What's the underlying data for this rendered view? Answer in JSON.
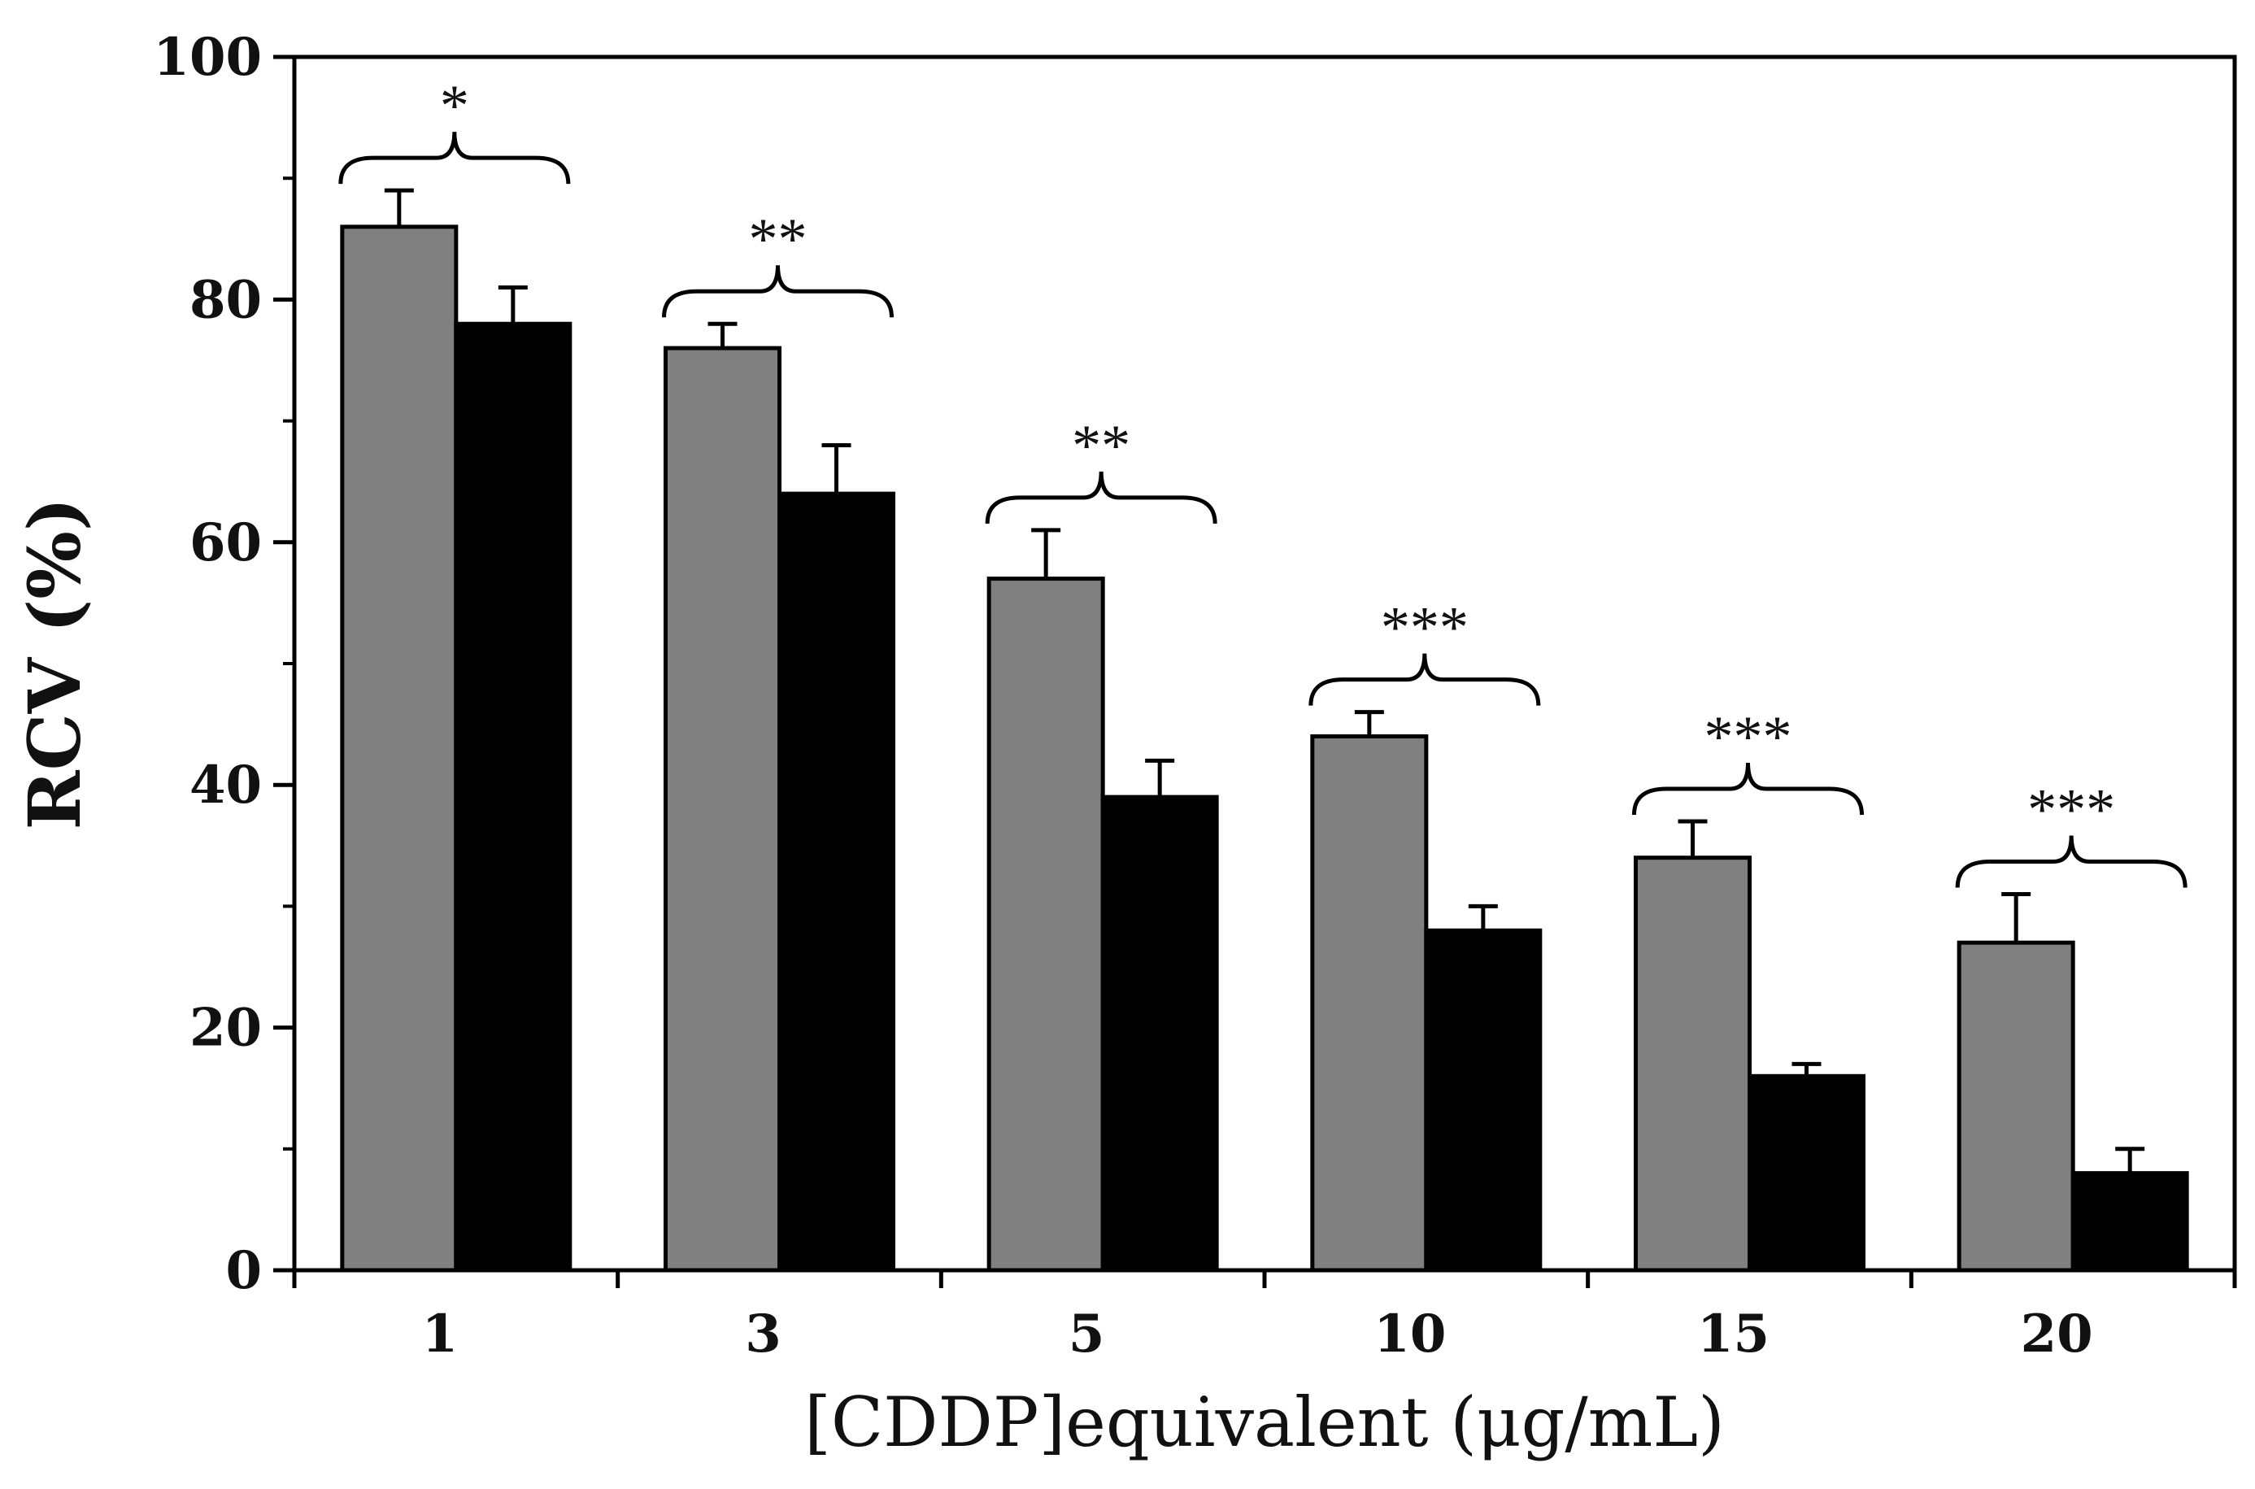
{
  "chart_data": {
    "type": "bar",
    "title": "",
    "xlabel": "[CDDP]equivalent (μg/mL)",
    "ylabel": "RCV (%)",
    "ylim": [
      0,
      100
    ],
    "yticks": [
      0,
      20,
      40,
      60,
      80,
      100
    ],
    "categories": [
      "1",
      "3",
      "5",
      "10",
      "15",
      "20"
    ],
    "series": [
      {
        "name": "series-gray",
        "color": "#808080",
        "values": [
          86,
          76,
          57,
          44,
          34,
          27
        ],
        "errors": [
          3,
          2,
          4,
          2,
          3,
          4
        ]
      },
      {
        "name": "series-black",
        "color": "#000000",
        "values": [
          78,
          64,
          39,
          28,
          16,
          8
        ],
        "errors": [
          3,
          4,
          3,
          2,
          1,
          2
        ]
      }
    ],
    "significance": [
      "*",
      "**",
      "**",
      "***",
      "***",
      "***"
    ],
    "legend": "none",
    "grid": false
  }
}
